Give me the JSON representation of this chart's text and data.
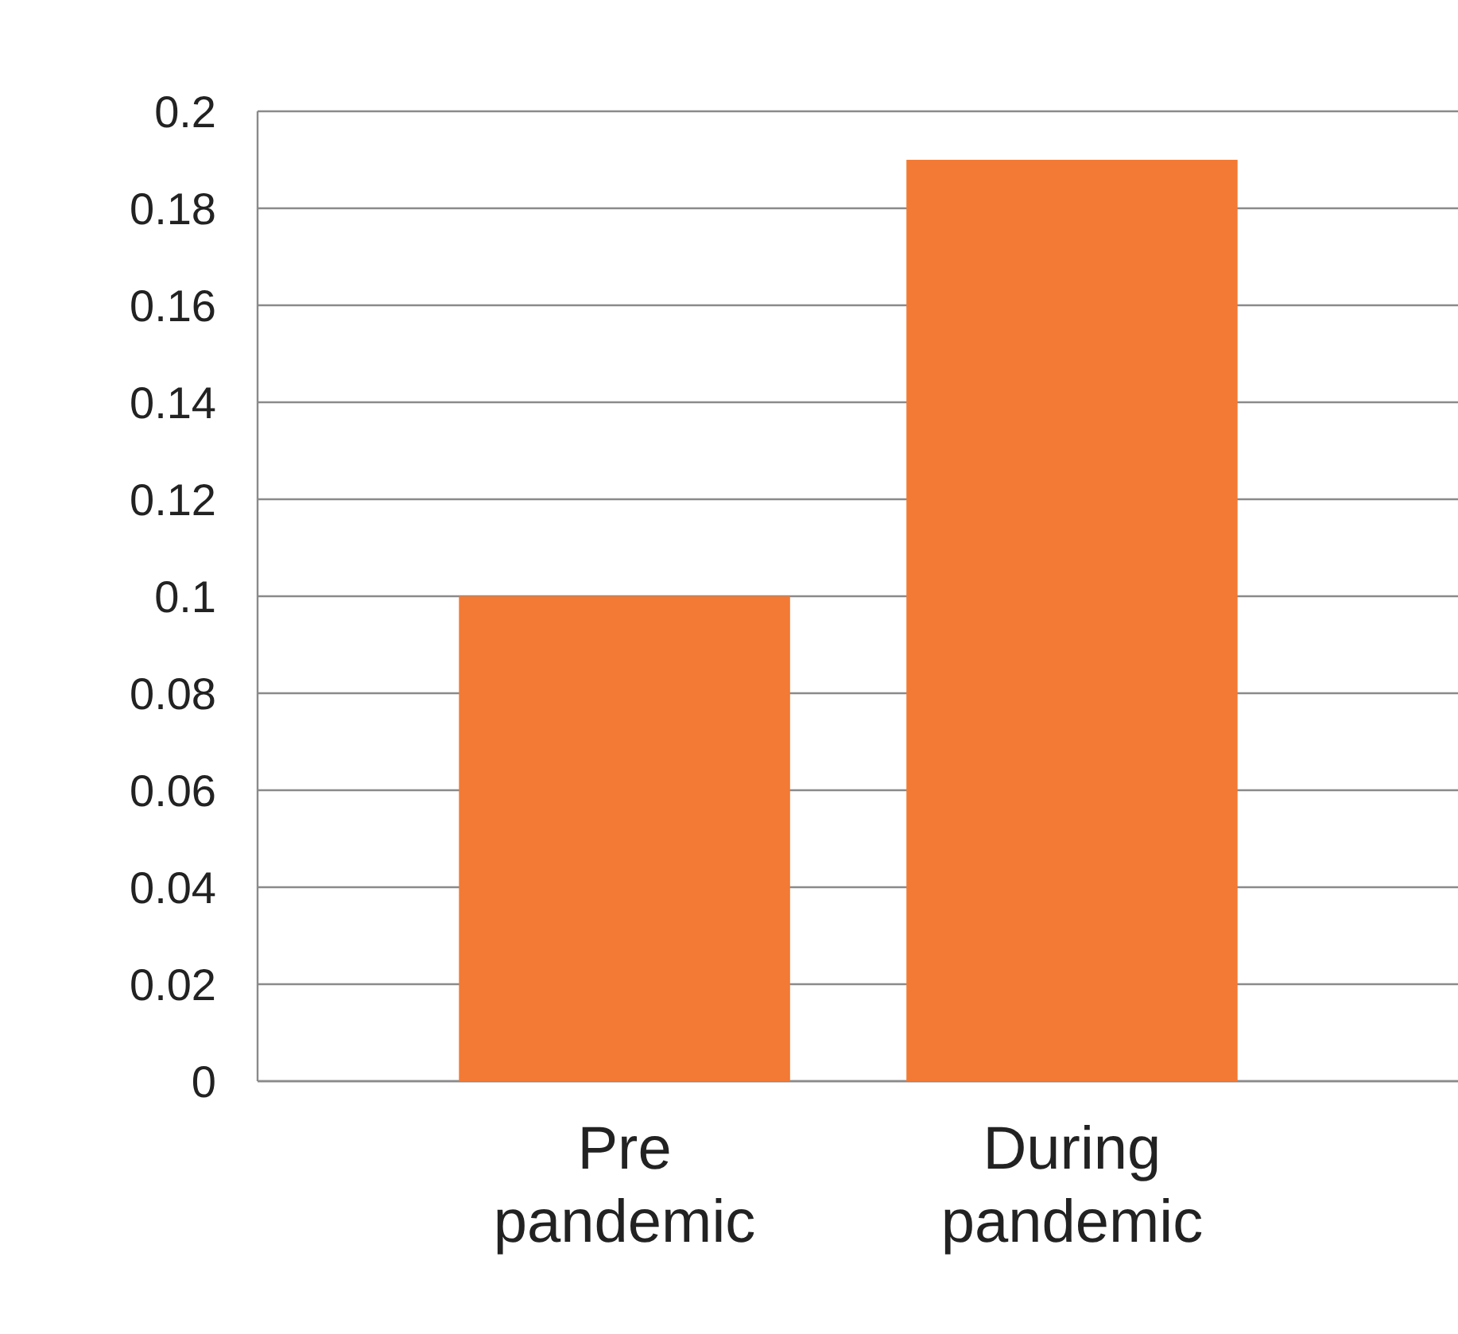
{
  "chart_data": {
    "type": "bar",
    "categories": [
      "Pre pandemic",
      "During pandemic"
    ],
    "values": [
      0.1,
      0.19
    ],
    "color": "#f37a35",
    "ylim": [
      0,
      0.2
    ],
    "yticks": [
      {
        "value": 0,
        "label": "0"
      },
      0.02,
      0.04,
      0.06,
      0.08,
      {
        "value": 0.1,
        "label": "0.1"
      },
      0.12,
      0.14,
      0.16,
      0.18,
      {
        "value": 0.2,
        "label": "0.2"
      }
    ],
    "grid": "y"
  }
}
